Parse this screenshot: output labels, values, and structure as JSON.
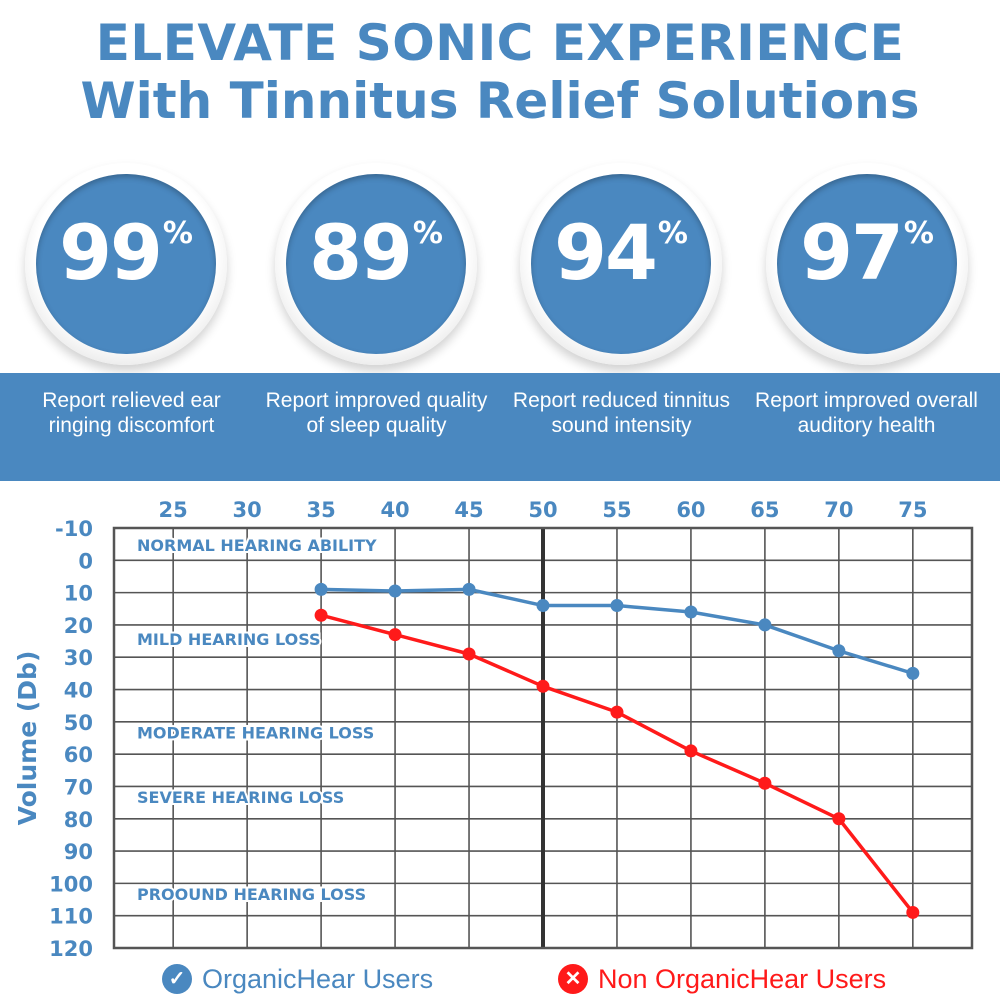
{
  "header": {
    "line1": "ELEVATE SONIC EXPERIENCE",
    "line2": "With Tinnitus Relief Solutions"
  },
  "stats": [
    {
      "value": "99",
      "unit": "%",
      "caption": "Report relieved ear ringing discomfort"
    },
    {
      "value": "89",
      "unit": "%",
      "caption": "Report improved quality of sleep quality"
    },
    {
      "value": "94",
      "unit": "%",
      "caption": "Report reduced tinnitus sound intensity"
    },
    {
      "value": "97",
      "unit": "%",
      "caption": "Report improved overall auditory health"
    }
  ],
  "colors": {
    "brand_blue": "#4a88c0",
    "red": "#ff1a1a",
    "grid": "#555555"
  },
  "legend": {
    "organic_icon": "check-icon",
    "organic_label": "OrganicHear Users",
    "non_icon": "x-icon",
    "non_label": "Non OrganicHear Users"
  },
  "chart_data": {
    "type": "line",
    "x_ticks": [
      25,
      30,
      35,
      40,
      45,
      50,
      55,
      60,
      65,
      70,
      75
    ],
    "y_ticks": [
      -10,
      0,
      10,
      20,
      30,
      40,
      50,
      60,
      70,
      80,
      90,
      100,
      110,
      120
    ],
    "xlim": [
      21,
      79
    ],
    "ylim": [
      -10,
      120
    ],
    "y_inverted": true,
    "x_axis_position": "top",
    "ylabel": "Volume (Db)",
    "grid": true,
    "legend_position": "bottom",
    "zones": [
      {
        "label": "NORMAL HEARING ABILITY",
        "y": -5
      },
      {
        "label": "MILD HEARING LOSS",
        "y": 24
      },
      {
        "label": "MODERATE HEARING LOSS",
        "y": 53
      },
      {
        "label": "SEVERE HEARING LOSS",
        "y": 73
      },
      {
        "label": "PROOUND HEARING LOSS",
        "y": 103
      }
    ],
    "series": [
      {
        "name": "OrganicHear Users",
        "color": "#4a88c0",
        "x": [
          35,
          40,
          45,
          50,
          55,
          60,
          65,
          70,
          75
        ],
        "y": [
          9,
          9.5,
          9,
          14,
          14,
          16,
          20,
          28,
          35
        ]
      },
      {
        "name": "Non OrganicHear Users",
        "color": "#ff1a1a",
        "x": [
          35,
          40,
          45,
          50,
          55,
          60,
          65,
          70,
          75
        ],
        "y": [
          17,
          23,
          29,
          39,
          47,
          59,
          69,
          80,
          109
        ]
      }
    ]
  }
}
